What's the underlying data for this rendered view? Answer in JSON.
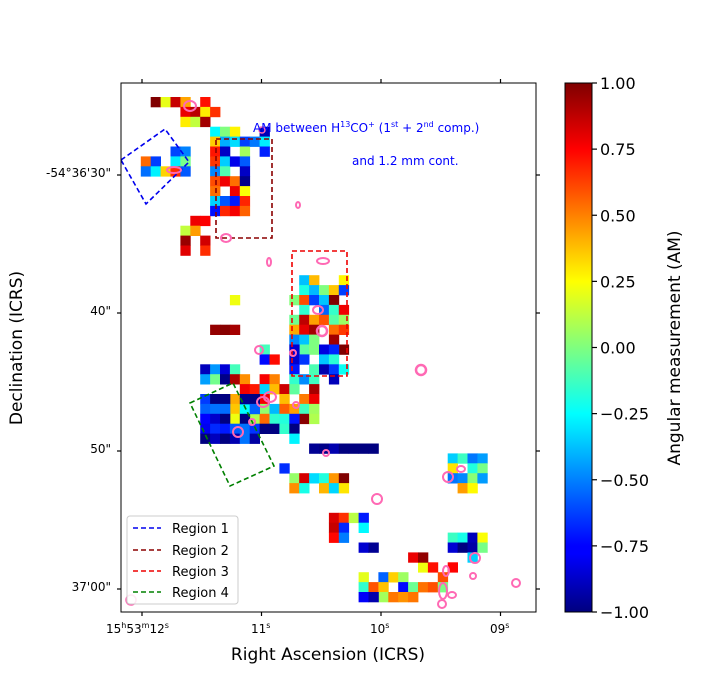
{
  "chart_data": {
    "type": "heatmap",
    "title": "",
    "annotation_line1": "AM between H",
    "annotation_sup_isotope": "13",
    "annotation_molecule": "CO",
    "annotation_sup_charge": "+",
    "annotation_open": " (1",
    "annotation_sup_1": "st",
    "annotation_plus": " + 2",
    "annotation_sup_2": "nd",
    "annotation_comp": " comp.)",
    "annotation_line2": "and 1.2 mm cont.",
    "xlabel": "Right Ascension (ICRS)",
    "ylabel": "Declination (ICRS)",
    "x_ticks": [
      {
        "value": 12.0,
        "label_main": "15",
        "sup_h": "h",
        "mid": "53",
        "sup_m": "m",
        "tail": "12",
        "sup_s": "s"
      },
      {
        "value": 11.0,
        "label": "11",
        "sup_s": "s"
      },
      {
        "value": 10.0,
        "label": "10",
        "sup_s": "s"
      },
      {
        "value": 9.0,
        "label": "09",
        "sup_s": "s"
      }
    ],
    "y_ticks": [
      {
        "value": 30,
        "label": "-54°36'30\""
      },
      {
        "value": 40,
        "label": "40\""
      },
      {
        "value": 50,
        "label": "50\""
      },
      {
        "value": 60,
        "label": "37'00\""
      }
    ],
    "colorbar": {
      "label": "Angular measurement (AM)",
      "range": [
        -1.0,
        1.0
      ],
      "ticks": [
        "1.00",
        "0.75",
        "0.50",
        "0.25",
        "0.00",
        "−0.25",
        "−0.50",
        "−0.75",
        "−1.00"
      ],
      "tick_values": [
        1.0,
        0.75,
        0.5,
        0.25,
        0.0,
        -0.25,
        -0.5,
        -0.75,
        -1.0
      ],
      "colormap": "jet"
    },
    "legend": {
      "position": "bottom-left",
      "entries": [
        {
          "name": "Region 1",
          "color": "#0000ee"
        },
        {
          "name": "Region 2",
          "color": "#8b0000"
        },
        {
          "name": "Region 3",
          "color": "#ee0000"
        },
        {
          "name": "Region 4",
          "color": "#008000"
        }
      ]
    },
    "marker_color": "#ff69b4"
  }
}
